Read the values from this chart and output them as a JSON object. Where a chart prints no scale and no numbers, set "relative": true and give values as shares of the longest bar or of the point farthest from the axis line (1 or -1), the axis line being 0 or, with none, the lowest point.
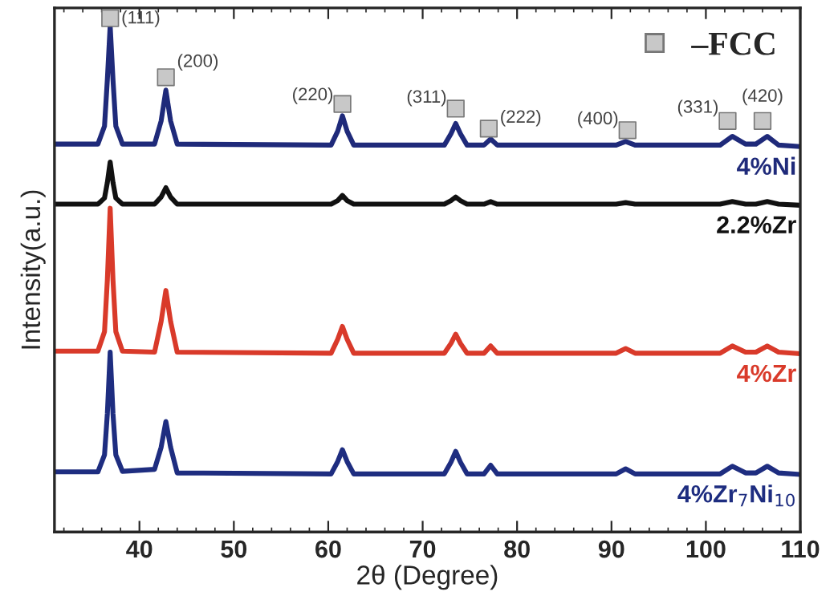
{
  "chart_data": {
    "type": "line",
    "relative": true,
    "xlabel": "2θ (Degree)",
    "ylabel": "Intensity(a.u.)",
    "xlim": [
      31,
      110
    ],
    "xticks": [
      40,
      50,
      60,
      70,
      80,
      90,
      100,
      110
    ],
    "grid": false,
    "legend": "top right",
    "marker": "none",
    "line_style": "solid",
    "x": [
      31,
      35.6,
      36.3,
      36.6,
      36.9,
      37.2,
      37.5,
      38.2,
      41.6,
      42.3,
      42.8,
      43.3,
      44.0,
      60.3,
      61.0,
      61.5,
      62.0,
      62.7,
      72.3,
      73.0,
      73.5,
      74.0,
      74.7,
      76.5,
      77.2,
      77.9,
      90.5,
      91.5,
      92.5,
      101.5,
      102.8,
      104.2,
      105.3,
      106.5,
      107.7,
      110
    ],
    "series": [
      {
        "name": "4%Ni",
        "color": "#1f2a7a",
        "values": [
          0.755,
          0.755,
          0.79,
          0.88,
          0.985,
          0.88,
          0.79,
          0.755,
          0.755,
          0.8,
          0.86,
          0.8,
          0.755,
          0.753,
          0.78,
          0.81,
          0.78,
          0.753,
          0.753,
          0.775,
          0.795,
          0.775,
          0.753,
          0.753,
          0.765,
          0.753,
          0.753,
          0.76,
          0.753,
          0.753,
          0.77,
          0.755,
          0.755,
          0.77,
          0.753,
          0.75
        ]
      },
      {
        "name": "2.2%Zr",
        "color": "#111111",
        "values": [
          0.638,
          0.638,
          0.65,
          0.68,
          0.72,
          0.68,
          0.65,
          0.638,
          0.638,
          0.652,
          0.67,
          0.652,
          0.638,
          0.638,
          0.645,
          0.655,
          0.645,
          0.638,
          0.638,
          0.645,
          0.652,
          0.645,
          0.638,
          0.638,
          0.643,
          0.638,
          0.638,
          0.641,
          0.638,
          0.638,
          0.643,
          0.638,
          0.638,
          0.643,
          0.638,
          0.636
        ]
      },
      {
        "name": "4%Zr",
        "color": "#d93a2a",
        "values": [
          0.352,
          0.352,
          0.39,
          0.49,
          0.63,
          0.49,
          0.39,
          0.352,
          0.35,
          0.41,
          0.47,
          0.41,
          0.35,
          0.348,
          0.375,
          0.4,
          0.375,
          0.348,
          0.348,
          0.367,
          0.385,
          0.367,
          0.348,
          0.348,
          0.362,
          0.348,
          0.348,
          0.357,
          0.348,
          0.348,
          0.362,
          0.35,
          0.35,
          0.362,
          0.35,
          0.347
        ]
      },
      {
        "name": "4%Zr$_{7}$Ni$_{10}$",
        "color": "#1e2d80",
        "values": [
          0.117,
          0.117,
          0.15,
          0.23,
          0.35,
          0.23,
          0.15,
          0.118,
          0.122,
          0.165,
          0.215,
          0.165,
          0.115,
          0.113,
          0.137,
          0.16,
          0.137,
          0.113,
          0.113,
          0.136,
          0.157,
          0.136,
          0.113,
          0.113,
          0.13,
          0.113,
          0.113,
          0.123,
          0.113,
          0.113,
          0.128,
          0.115,
          0.115,
          0.128,
          0.115,
          0.112
        ]
      },
      {
        "name": "–FCC",
        "type": "scatter",
        "marker": "square",
        "color": "#c8c8c8",
        "x": [
          36.9,
          42.8,
          61.5,
          73.5,
          77.0,
          91.7,
          102.3,
          106.0
        ],
        "values": [
          1.0,
          0.885,
          0.833,
          0.824,
          0.785,
          0.782,
          0.8,
          0.8
        ]
      }
    ],
    "annotations": [
      {
        "text": "(111)",
        "x": 36.9,
        "y": 1.0
      },
      {
        "text": "(200)",
        "x": 42.8,
        "y": 0.885
      },
      {
        "text": "(220)",
        "x": 61.5,
        "y": 0.833
      },
      {
        "text": "(311)",
        "x": 73.5,
        "y": 0.824
      },
      {
        "text": "(222)",
        "x": 77.0,
        "y": 0.785
      },
      {
        "text": "(400)",
        "x": 91.7,
        "y": 0.782
      },
      {
        "text": "(331)",
        "x": 102.3,
        "y": 0.8
      },
      {
        "text": "(420)",
        "x": 106.0,
        "y": 0.8
      }
    ]
  }
}
